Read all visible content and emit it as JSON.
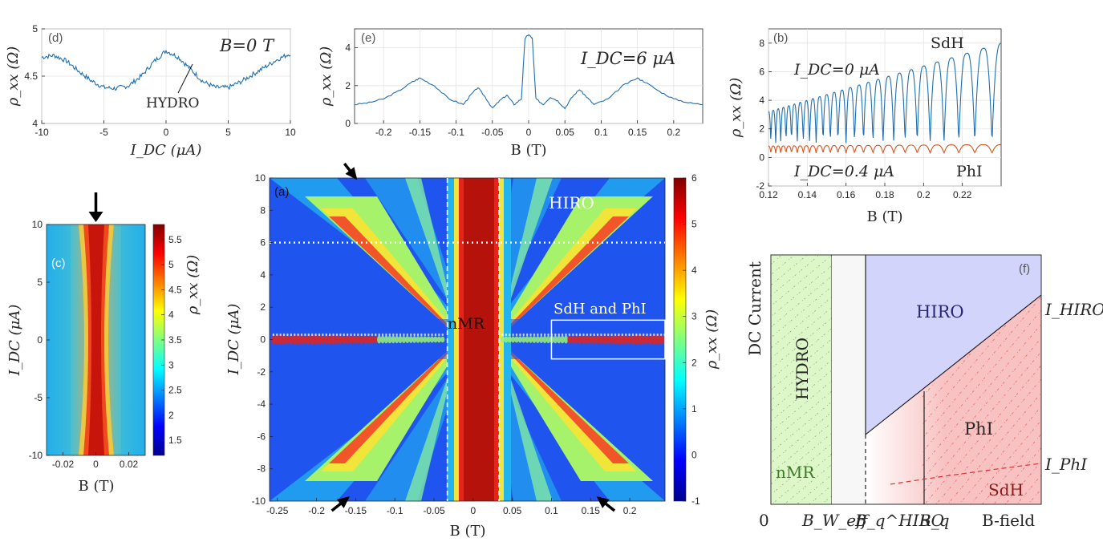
{
  "panels": {
    "d": {
      "letter": "(d)",
      "annotation": "B=0 T",
      "feature_label": "HYDRO",
      "xlabel": "I_DC (μA)",
      "ylabel": "ρ_xx (Ω)"
    },
    "e": {
      "letter": "(e)",
      "annotation": "I_DC=6 μA",
      "xlabel": "B (T)",
      "ylabel": "ρ_xx (Ω)"
    },
    "b": {
      "letter": "(b)",
      "label_top": "SdH",
      "label_bottom": "PhI",
      "curve_top": "I_DC=0 μA",
      "curve_bottom": "I_DC=0.4 μA",
      "xlabel": "B (T)",
      "ylabel": "ρ_xx (Ω)"
    },
    "c": {
      "letter": "(c)",
      "xlabel": "B (T)",
      "ylabel": "I_DC (μA)",
      "cbar_label": "ρ_xx (Ω)"
    },
    "a": {
      "letter": "(a)",
      "label_hiro": "HIRO",
      "label_nmr": "nMR",
      "label_sdh": "SdH and PhI",
      "xlabel": "B (T)",
      "ylabel": "I_DC (μA)",
      "cbar_label": "ρ_xx (Ω)"
    },
    "f": {
      "letter": "(f)",
      "ylabel": "DC Current",
      "origin": "0",
      "xlabel": "B-field",
      "region_hydro": "HYDRO",
      "region_nmr": "nMR",
      "region_hiro": "HIRO",
      "region_phi": "PhI",
      "region_sdh": "SdH",
      "line_hiro": "I_HIRO",
      "line_phi": "I_PhI",
      "tick_bw": "B_W_eff",
      "tick_bqhiro": "B_q^HIRO",
      "tick_bq": "B_q"
    }
  },
  "chart_data": [
    {
      "id": "d",
      "type": "line",
      "title": "",
      "xlabel": "I_DC (μA)",
      "ylabel": "ρ_xx (Ω)",
      "xlim": [
        -10,
        10
      ],
      "ylim": [
        4,
        5
      ],
      "xticks": [
        -10,
        -5,
        0,
        5,
        10
      ],
      "yticks": [
        4,
        4.5,
        5
      ],
      "x": [
        -10,
        -9,
        -8,
        -7,
        -6,
        -5,
        -4,
        -3,
        -2,
        -1,
        0,
        1,
        2,
        3,
        4,
        5,
        6,
        7,
        8,
        9,
        10
      ],
      "values": [
        4.7,
        4.72,
        4.66,
        4.55,
        4.45,
        4.38,
        4.37,
        4.4,
        4.5,
        4.65,
        4.77,
        4.7,
        4.57,
        4.44,
        4.38,
        4.38,
        4.44,
        4.52,
        4.6,
        4.68,
        4.74
      ],
      "color": "#1f6fb2",
      "grid": true
    },
    {
      "id": "e",
      "type": "line",
      "title": "",
      "xlabel": "B (T)",
      "ylabel": "ρ_xx (Ω)",
      "xlim": [
        -0.24,
        0.24
      ],
      "ylim": [
        0,
        5
      ],
      "xticks": [
        -0.2,
        -0.15,
        -0.1,
        -0.05,
        0,
        0.05,
        0.1,
        0.15,
        0.2
      ],
      "yticks": [
        0,
        2,
        4
      ],
      "x": [
        -0.24,
        -0.22,
        -0.2,
        -0.18,
        -0.16,
        -0.15,
        -0.13,
        -0.11,
        -0.09,
        -0.08,
        -0.07,
        -0.06,
        -0.05,
        -0.04,
        -0.03,
        -0.02,
        -0.01,
        -0.005,
        0,
        0.005,
        0.01,
        0.02,
        0.03,
        0.04,
        0.05,
        0.06,
        0.07,
        0.08,
        0.09,
        0.11,
        0.13,
        0.15,
        0.16,
        0.18,
        0.2,
        0.22,
        0.24
      ],
      "values": [
        1.0,
        1.1,
        1.3,
        1.7,
        2.2,
        2.4,
        2.0,
        1.3,
        1.0,
        1.5,
        1.9,
        1.4,
        0.8,
        1.2,
        1.5,
        1.0,
        1.3,
        4.5,
        4.7,
        4.5,
        1.3,
        1.0,
        1.4,
        1.2,
        0.8,
        1.4,
        1.8,
        1.4,
        1.0,
        1.3,
        2.0,
        2.4,
        2.2,
        1.7,
        1.3,
        1.1,
        1.0
      ],
      "color": "#1f6fb2",
      "grid": true
    },
    {
      "id": "b",
      "type": "line",
      "title": "",
      "xlabel": "B (T)",
      "ylabel": "ρ_xx (Ω)",
      "xlim": [
        0.12,
        0.24
      ],
      "ylim": [
        -2,
        9
      ],
      "xticks": [
        0.12,
        0.14,
        0.16,
        0.18,
        0.2,
        0.22
      ],
      "yticks": [
        -2,
        0,
        2,
        4,
        6,
        8
      ],
      "series": [
        {
          "name": "I_DC=0 μA",
          "color": "#1f6fb2",
          "osc_min": 1.0,
          "osc_max_start": 3.2,
          "osc_max_end": 8.0
        },
        {
          "name": "I_DC=0.4 μA",
          "color": "#d9531e",
          "osc_min": 0.3,
          "osc_max_start": 0.8,
          "osc_max_end": 0.9
        }
      ],
      "grid": true
    },
    {
      "id": "c",
      "type": "heatmap",
      "xlabel": "B (T)",
      "ylabel": "I_DC (μA)",
      "xlim": [
        -0.03,
        0.03
      ],
      "ylim": [
        -10,
        10
      ],
      "xticks": [
        -0.02,
        0,
        0.02
      ],
      "yticks": [
        -10,
        -5,
        0,
        5,
        10
      ],
      "colorbar": {
        "label": "ρ_xx (Ω)",
        "ticks": [
          1.5,
          2,
          2.5,
          3,
          3.5,
          4,
          4.5,
          5,
          5.5
        ],
        "range": [
          1.2,
          5.8
        ]
      },
      "arrow_at": {
        "x": 0,
        "y": 10
      }
    },
    {
      "id": "a",
      "type": "heatmap",
      "xlabel": "B (T)",
      "ylabel": "I_DC (μA)",
      "xlim": [
        -0.26,
        0.245
      ],
      "ylim": [
        -10,
        10
      ],
      "xticks": [
        -0.25,
        -0.2,
        -0.15,
        -0.1,
        -0.05,
        0,
        0.05,
        0.1,
        0.15,
        0.2
      ],
      "yticks": [
        -10,
        -8,
        -6,
        -4,
        -2,
        0,
        2,
        4,
        6,
        8,
        10
      ],
      "colorbar": {
        "label": "ρ_xx (Ω)",
        "ticks": [
          -1,
          0,
          1,
          2,
          3,
          4,
          5,
          6
        ],
        "range": [
          -1,
          6
        ]
      },
      "dashed_vertical_B": [
        -0.033,
        0.033
      ],
      "dotted_horizontal_I": 6,
      "sdh_box": {
        "B": [
          0.1,
          0.245
        ],
        "I": [
          -1.2,
          1.2
        ]
      },
      "arrows": [
        {
          "B": -0.15,
          "I": 10
        },
        {
          "B": -0.16,
          "I": -9.8
        },
        {
          "B": 0.16,
          "I": -9.8
        }
      ]
    },
    {
      "id": "f",
      "type": "diagram",
      "xlabel": "B-field",
      "ylabel": "DC Current",
      "regions": [
        "HYDRO",
        "nMR",
        "HIRO",
        "PhI",
        "SdH"
      ],
      "x_ticks": [
        "0",
        "B_W_eff",
        "B_q^HIRO",
        "B_q"
      ],
      "lines": [
        "I_HIRO",
        "I_PhI"
      ]
    }
  ]
}
